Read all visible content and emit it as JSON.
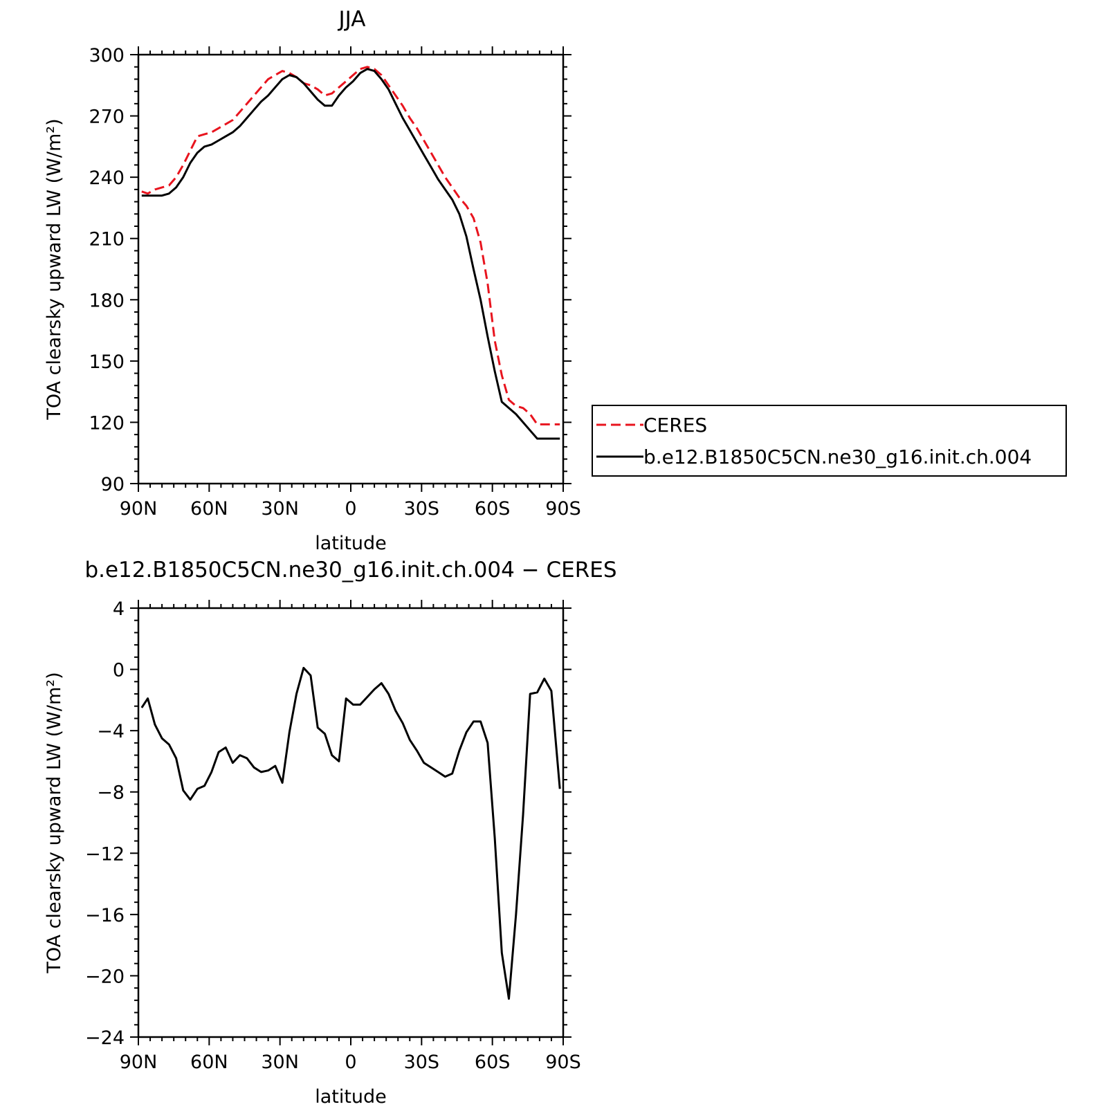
{
  "chart_data": [
    {
      "type": "line",
      "title": "JJA",
      "xlabel": "latitude",
      "ylabel": "TOA clearsky upward LW (W/m²)",
      "xlim": [
        90,
        -90
      ],
      "ylim": [
        90,
        300
      ],
      "xticks": [
        90,
        60,
        30,
        0,
        -30,
        -60,
        -90
      ],
      "xtick_labels": [
        "90N",
        "60N",
        "30N",
        "0",
        "30S",
        "60S",
        "90S"
      ],
      "yticks": [
        90,
        120,
        150,
        180,
        210,
        240,
        270,
        300
      ],
      "ytick_labels": [
        "90",
        "120",
        "150",
        "180",
        "210",
        "240",
        "270",
        "300"
      ],
      "grid": false,
      "legend_placement": "right, outside plot",
      "series": [
        {
          "name": "CERES",
          "color": "#e8141e",
          "dash": "dashed",
          "x": [
            88.6,
            86,
            83,
            80,
            77,
            74,
            71,
            68,
            65,
            62,
            59,
            56,
            53,
            50,
            47,
            44,
            41,
            38,
            35,
            32,
            29,
            26,
            23,
            20,
            17,
            14,
            11,
            8,
            5,
            2,
            -1,
            -4,
            -7,
            -10,
            -13,
            -16,
            -19,
            -22,
            -25,
            -28,
            -31,
            -34,
            -37,
            -40,
            -43,
            -46,
            -49,
            -52,
            -55,
            -58,
            -61,
            -64,
            -67,
            -70,
            -73,
            -76,
            -79,
            -82,
            -85,
            -88.6
          ],
          "y": [
            233,
            232,
            234,
            235,
            236,
            240,
            246,
            253,
            260,
            261,
            262,
            264,
            266,
            268,
            272,
            276,
            280,
            284,
            288,
            290,
            292,
            291,
            289,
            286,
            285,
            283,
            280,
            281,
            284,
            287,
            290,
            293,
            294,
            293,
            290,
            285,
            280,
            275,
            269,
            264,
            258,
            252,
            246,
            240,
            235,
            230,
            226,
            220,
            208,
            188,
            160,
            143,
            131,
            128,
            127,
            124,
            119,
            119,
            119,
            119
          ]
        },
        {
          "name": "b.e12.B1850C5CN.ne30_g16.init.ch.004",
          "color": "#000000",
          "dash": "solid",
          "x": [
            88.6,
            86,
            83,
            80,
            77,
            74,
            71,
            68,
            65,
            62,
            59,
            56,
            53,
            50,
            47,
            44,
            41,
            38,
            35,
            32,
            29,
            26,
            23,
            20,
            17,
            14,
            11,
            8,
            5,
            2,
            -1,
            -4,
            -7,
            -10,
            -13,
            -16,
            -19,
            -22,
            -25,
            -28,
            -31,
            -34,
            -37,
            -40,
            -43,
            -46,
            -49,
            -52,
            -55,
            -58,
            -61,
            -64,
            -67,
            -70,
            -73,
            -76,
            -79,
            -82,
            -85,
            -88.6
          ],
          "y": [
            231,
            231,
            231,
            231,
            232,
            235,
            240,
            247,
            252,
            255,
            256,
            258,
            260,
            262,
            265,
            269,
            273,
            277,
            280,
            284,
            288,
            290,
            289,
            286,
            282,
            278,
            275,
            275,
            280,
            284,
            287,
            291,
            293,
            292,
            288,
            283,
            276,
            269,
            263,
            257,
            251,
            245,
            239,
            234,
            229,
            222,
            211,
            195,
            180,
            162,
            145,
            130,
            127,
            124,
            120,
            116,
            112,
            112,
            112,
            112
          ]
        }
      ],
      "legend": {
        "entries": [
          "CERES",
          "b.e12.B1850C5CN.ne30_g16.init.ch.004"
        ]
      }
    },
    {
      "type": "line",
      "title": "b.e12.B1850C5CN.ne30_g16.init.ch.004 − CERES",
      "xlabel": "latitude",
      "ylabel": "TOA clearsky upward LW (W/m²)",
      "xlim": [
        90,
        -90
      ],
      "ylim": [
        -24,
        4
      ],
      "xticks": [
        90,
        60,
        30,
        0,
        -30,
        -60,
        -90
      ],
      "xtick_labels": [
        "90N",
        "60N",
        "30N",
        "0",
        "30S",
        "60S",
        "90S"
      ],
      "yticks": [
        4,
        0,
        -4,
        -8,
        -12,
        -16,
        -20,
        -24
      ],
      "ytick_labels": [
        "4",
        "0",
        "−4",
        "−8",
        "−12",
        "−16",
        "−20",
        "−24"
      ],
      "grid": false,
      "series": [
        {
          "color": "#000000",
          "dash": "solid",
          "x": [
            88.6,
            86,
            83,
            80,
            77,
            74,
            71,
            68,
            65,
            62,
            59,
            56,
            53,
            50,
            47,
            44,
            41,
            38,
            35,
            32,
            29,
            26,
            23,
            20,
            17,
            14,
            11,
            8,
            5,
            2,
            -1,
            -4,
            -7,
            -10,
            -13,
            -16,
            -19,
            -22,
            -25,
            -28,
            -31,
            -34,
            -37,
            -40,
            -43,
            -46,
            -49,
            -52,
            -55,
            -58,
            -61,
            -64,
            -67,
            -70,
            -73,
            -76,
            -79,
            -82,
            -85,
            -88.6
          ],
          "y": [
            -2.5,
            -1.9,
            -3.6,
            -4.5,
            -4.9,
            -5.8,
            -7.9,
            -8.5,
            -7.8,
            -7.6,
            -6.7,
            -5.4,
            -5.1,
            -6.1,
            -5.6,
            -5.8,
            -6.4,
            -6.7,
            -6.6,
            -6.3,
            -7.4,
            -4.1,
            -1.6,
            0.1,
            -0.4,
            -3.8,
            -4.2,
            -5.6,
            -6.0,
            -1.9,
            -2.3,
            -2.3,
            -1.8,
            -1.3,
            -0.9,
            -1.6,
            -2.7,
            -3.5,
            -4.6,
            -5.3,
            -6.1,
            -6.4,
            -6.7,
            -7.0,
            -6.8,
            -5.3,
            -4.1,
            -3.4,
            -3.4,
            -4.8,
            -11.0,
            -18.5,
            -21.5,
            -16.0,
            -9.5,
            -1.6,
            -1.5,
            -0.6,
            -1.4,
            -7.8
          ]
        }
      ]
    }
  ]
}
